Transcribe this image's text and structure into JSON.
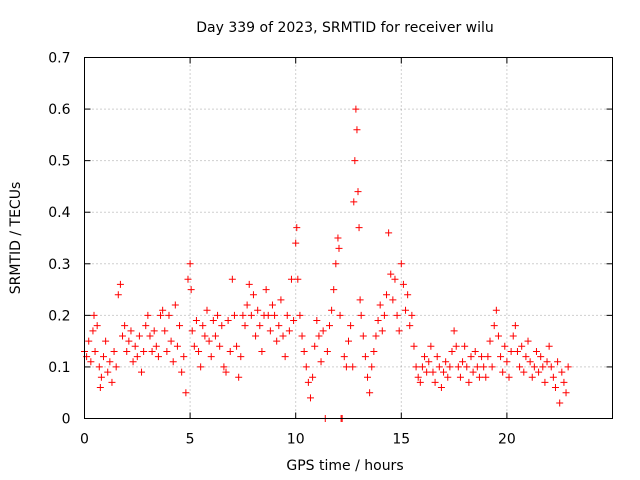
{
  "chart_data": {
    "type": "scatter",
    "title": "Day 339 of 2023, SRMTID for receiver wilu",
    "xlabel": "GPS time / hours",
    "ylabel": "SRMTID / TECUs",
    "xlim": [
      0,
      25
    ],
    "ylim": [
      0,
      0.7
    ],
    "xticks": [
      0,
      5,
      10,
      15,
      20
    ],
    "xtick_labels": [
      "0",
      "5",
      "10",
      "15",
      "20"
    ],
    "yticks": [
      0,
      0.1,
      0.2,
      0.3,
      0.4,
      0.5,
      0.6,
      0.7
    ],
    "ytick_labels": [
      "0",
      "0.1",
      "0.2",
      "0.3",
      "0.4",
      "0.5",
      "0.6",
      "0.7"
    ],
    "grid": true,
    "marker": "+",
    "color": "#ff0000",
    "series": [
      {
        "name": "SRMTID",
        "points": [
          [
            0.0,
            0.13
          ],
          [
            0.1,
            0.12
          ],
          [
            0.2,
            0.15
          ],
          [
            0.3,
            0.11
          ],
          [
            0.4,
            0.17
          ],
          [
            0.45,
            0.2
          ],
          [
            0.5,
            0.13
          ],
          [
            0.6,
            0.18
          ],
          [
            0.7,
            0.1
          ],
          [
            0.75,
            0.06
          ],
          [
            0.8,
            0.08
          ],
          [
            0.9,
            0.12
          ],
          [
            1.0,
            0.15
          ],
          [
            1.1,
            0.09
          ],
          [
            1.2,
            0.11
          ],
          [
            1.3,
            0.07
          ],
          [
            1.4,
            0.13
          ],
          [
            1.5,
            0.1
          ],
          [
            1.6,
            0.24
          ],
          [
            1.7,
            0.26
          ],
          [
            1.8,
            0.16
          ],
          [
            1.9,
            0.18
          ],
          [
            2.0,
            0.13
          ],
          [
            2.1,
            0.15
          ],
          [
            2.2,
            0.17
          ],
          [
            2.3,
            0.11
          ],
          [
            2.4,
            0.14
          ],
          [
            2.5,
            0.12
          ],
          [
            2.6,
            0.16
          ],
          [
            2.7,
            0.09
          ],
          [
            2.8,
            0.13
          ],
          [
            2.9,
            0.18
          ],
          [
            3.0,
            0.2
          ],
          [
            3.1,
            0.16
          ],
          [
            3.2,
            0.13
          ],
          [
            3.3,
            0.17
          ],
          [
            3.4,
            0.14
          ],
          [
            3.5,
            0.12
          ],
          [
            3.6,
            0.2
          ],
          [
            3.7,
            0.21
          ],
          [
            3.8,
            0.17
          ],
          [
            3.9,
            0.13
          ],
          [
            4.0,
            0.2
          ],
          [
            4.1,
            0.15
          ],
          [
            4.2,
            0.11
          ],
          [
            4.3,
            0.22
          ],
          [
            4.4,
            0.14
          ],
          [
            4.5,
            0.18
          ],
          [
            4.6,
            0.09
          ],
          [
            4.7,
            0.12
          ],
          [
            4.8,
            0.05
          ],
          [
            4.9,
            0.27
          ],
          [
            5.0,
            0.3
          ],
          [
            5.05,
            0.25
          ],
          [
            5.1,
            0.17
          ],
          [
            5.2,
            0.14
          ],
          [
            5.3,
            0.19
          ],
          [
            5.4,
            0.13
          ],
          [
            5.5,
            0.1
          ],
          [
            5.6,
            0.18
          ],
          [
            5.7,
            0.16
          ],
          [
            5.8,
            0.21
          ],
          [
            5.9,
            0.15
          ],
          [
            6.0,
            0.12
          ],
          [
            6.1,
            0.19
          ],
          [
            6.2,
            0.16
          ],
          [
            6.3,
            0.2
          ],
          [
            6.4,
            0.14
          ],
          [
            6.5,
            0.18
          ],
          [
            6.6,
            0.1
          ],
          [
            6.7,
            0.09
          ],
          [
            6.8,
            0.19
          ],
          [
            6.9,
            0.13
          ],
          [
            7.0,
            0.27
          ],
          [
            7.1,
            0.2
          ],
          [
            7.2,
            0.14
          ],
          [
            7.3,
            0.08
          ],
          [
            7.4,
            0.12
          ],
          [
            7.5,
            0.2
          ],
          [
            7.6,
            0.18
          ],
          [
            7.7,
            0.22
          ],
          [
            7.8,
            0.26
          ],
          [
            7.9,
            0.2
          ],
          [
            8.0,
            0.24
          ],
          [
            8.1,
            0.16
          ],
          [
            8.2,
            0.21
          ],
          [
            8.3,
            0.18
          ],
          [
            8.4,
            0.13
          ],
          [
            8.5,
            0.2
          ],
          [
            8.6,
            0.25
          ],
          [
            8.7,
            0.2
          ],
          [
            8.8,
            0.17
          ],
          [
            8.9,
            0.22
          ],
          [
            9.0,
            0.2
          ],
          [
            9.1,
            0.15
          ],
          [
            9.2,
            0.18
          ],
          [
            9.3,
            0.23
          ],
          [
            9.4,
            0.16
          ],
          [
            9.5,
            0.12
          ],
          [
            9.6,
            0.2
          ],
          [
            9.7,
            0.17
          ],
          [
            9.8,
            0.27
          ],
          [
            9.9,
            0.19
          ],
          [
            10.0,
            0.34
          ],
          [
            10.05,
            0.37
          ],
          [
            10.1,
            0.27
          ],
          [
            10.2,
            0.2
          ],
          [
            10.3,
            0.16
          ],
          [
            10.4,
            0.13
          ],
          [
            10.5,
            0.1
          ],
          [
            10.6,
            0.07
          ],
          [
            10.7,
            0.04
          ],
          [
            10.8,
            0.08
          ],
          [
            10.9,
            0.14
          ],
          [
            11.0,
            0.19
          ],
          [
            11.1,
            0.16
          ],
          [
            11.2,
            0.11
          ],
          [
            11.3,
            0.17
          ],
          [
            11.4,
            0.0
          ],
          [
            11.5,
            0.13
          ],
          [
            11.6,
            0.18
          ],
          [
            11.7,
            0.21
          ],
          [
            11.8,
            0.25
          ],
          [
            11.9,
            0.3
          ],
          [
            12.0,
            0.35
          ],
          [
            12.05,
            0.33
          ],
          [
            12.1,
            0.2
          ],
          [
            12.15,
            0.0
          ],
          [
            12.2,
            0.0
          ],
          [
            12.3,
            0.12
          ],
          [
            12.4,
            0.1
          ],
          [
            12.5,
            0.15
          ],
          [
            12.6,
            0.18
          ],
          [
            12.7,
            0.1
          ],
          [
            12.75,
            0.42
          ],
          [
            12.8,
            0.5
          ],
          [
            12.85,
            0.6
          ],
          [
            12.9,
            0.56
          ],
          [
            12.95,
            0.44
          ],
          [
            13.0,
            0.37
          ],
          [
            13.05,
            0.23
          ],
          [
            13.1,
            0.2
          ],
          [
            13.2,
            0.16
          ],
          [
            13.3,
            0.12
          ],
          [
            13.4,
            0.08
          ],
          [
            13.5,
            0.05
          ],
          [
            13.6,
            0.1
          ],
          [
            13.7,
            0.13
          ],
          [
            13.8,
            0.16
          ],
          [
            13.9,
            0.19
          ],
          [
            14.0,
            0.22
          ],
          [
            14.1,
            0.17
          ],
          [
            14.2,
            0.2
          ],
          [
            14.3,
            0.24
          ],
          [
            14.4,
            0.36
          ],
          [
            14.5,
            0.28
          ],
          [
            14.6,
            0.23
          ],
          [
            14.7,
            0.27
          ],
          [
            14.8,
            0.2
          ],
          [
            14.9,
            0.17
          ],
          [
            15.0,
            0.3
          ],
          [
            15.1,
            0.26
          ],
          [
            15.2,
            0.21
          ],
          [
            15.3,
            0.24
          ],
          [
            15.4,
            0.18
          ],
          [
            15.5,
            0.2
          ],
          [
            15.6,
            0.14
          ],
          [
            15.7,
            0.1
          ],
          [
            15.8,
            0.08
          ],
          [
            15.9,
            0.07
          ],
          [
            16.0,
            0.1
          ],
          [
            16.1,
            0.12
          ],
          [
            16.2,
            0.09
          ],
          [
            16.3,
            0.11
          ],
          [
            16.4,
            0.14
          ],
          [
            16.5,
            0.09
          ],
          [
            16.6,
            0.07
          ],
          [
            16.7,
            0.12
          ],
          [
            16.8,
            0.1
          ],
          [
            16.9,
            0.06
          ],
          [
            17.0,
            0.09
          ],
          [
            17.1,
            0.11
          ],
          [
            17.2,
            0.08
          ],
          [
            17.3,
            0.1
          ],
          [
            17.4,
            0.13
          ],
          [
            17.5,
            0.17
          ],
          [
            17.6,
            0.14
          ],
          [
            17.7,
            0.1
          ],
          [
            17.8,
            0.08
          ],
          [
            17.9,
            0.11
          ],
          [
            18.0,
            0.14
          ],
          [
            18.1,
            0.1
          ],
          [
            18.2,
            0.07
          ],
          [
            18.3,
            0.12
          ],
          [
            18.4,
            0.09
          ],
          [
            18.5,
            0.13
          ],
          [
            18.6,
            0.1
          ],
          [
            18.7,
            0.08
          ],
          [
            18.8,
            0.12
          ],
          [
            18.9,
            0.1
          ],
          [
            19.0,
            0.08
          ],
          [
            19.1,
            0.12
          ],
          [
            19.2,
            0.15
          ],
          [
            19.3,
            0.1
          ],
          [
            19.4,
            0.18
          ],
          [
            19.5,
            0.21
          ],
          [
            19.6,
            0.16
          ],
          [
            19.7,
            0.12
          ],
          [
            19.8,
            0.09
          ],
          [
            19.9,
            0.14
          ],
          [
            20.0,
            0.11
          ],
          [
            20.1,
            0.08
          ],
          [
            20.2,
            0.13
          ],
          [
            20.3,
            0.16
          ],
          [
            20.4,
            0.18
          ],
          [
            20.5,
            0.13
          ],
          [
            20.6,
            0.1
          ],
          [
            20.7,
            0.14
          ],
          [
            20.8,
            0.09
          ],
          [
            20.9,
            0.12
          ],
          [
            21.0,
            0.15
          ],
          [
            21.1,
            0.11
          ],
          [
            21.2,
            0.08
          ],
          [
            21.3,
            0.1
          ],
          [
            21.4,
            0.13
          ],
          [
            21.5,
            0.09
          ],
          [
            21.6,
            0.12
          ],
          [
            21.7,
            0.1
          ],
          [
            21.8,
            0.07
          ],
          [
            21.9,
            0.11
          ],
          [
            22.0,
            0.14
          ],
          [
            22.1,
            0.1
          ],
          [
            22.2,
            0.08
          ],
          [
            22.3,
            0.06
          ],
          [
            22.4,
            0.11
          ],
          [
            22.5,
            0.03
          ],
          [
            22.6,
            0.09
          ],
          [
            22.7,
            0.07
          ],
          [
            22.8,
            0.05
          ],
          [
            22.9,
            0.1
          ]
        ]
      }
    ]
  }
}
